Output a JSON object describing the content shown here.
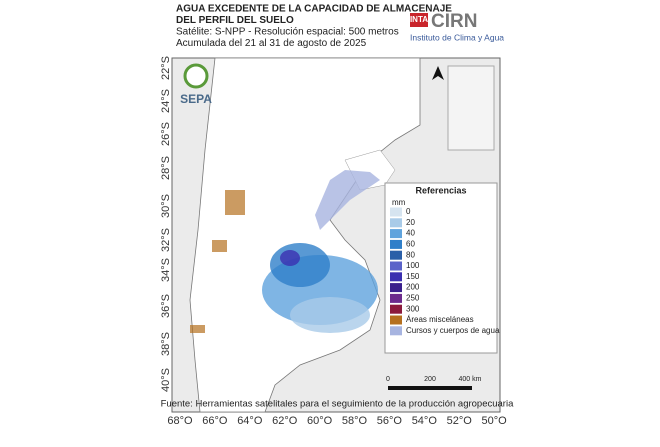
{
  "header": {
    "title_lines": [
      "AGUA EXCEDENTE DE LA CAPACIDAD DE ALMACENAJE",
      "DEL PERFIL DEL SUELO",
      "Satélite: S-NPP - Resolución espacial: 500 metros",
      "Acumulada del 21 al 31 de agosto de 2025"
    ]
  },
  "logo": {
    "org": "INTA",
    "name": "CIRN",
    "subtitle": "Instituto de Clima y Agua"
  },
  "sepa": "SEPA",
  "latitude_labels": [
    "22°S",
    "24°S",
    "26°S",
    "28°S",
    "30°S",
    "32°S",
    "34°S",
    "36°S",
    "38°S",
    "40°S"
  ],
  "longitude_labels": [
    "68°O",
    "66°O",
    "64°O",
    "62°O",
    "60°O",
    "58°O",
    "56°O",
    "54°O",
    "52°O",
    "50°O"
  ],
  "legend": {
    "title": "Referencias",
    "unit": "mm",
    "items": [
      {
        "label": "0",
        "color": "#d6e4f0"
      },
      {
        "label": "20",
        "color": "#a9cbe8"
      },
      {
        "label": "40",
        "color": "#5fa3dd"
      },
      {
        "label": "60",
        "color": "#2f7fc9"
      },
      {
        "label": "80",
        "color": "#2a5fa8"
      },
      {
        "label": "100",
        "color": "#5b63c9"
      },
      {
        "label": "150",
        "color": "#3b2fb0"
      },
      {
        "label": "200",
        "color": "#3a1f8c"
      },
      {
        "label": "250",
        "color": "#6b2a8c"
      },
      {
        "label": "300",
        "color": "#8b1a3c"
      },
      {
        "label": "Áreas misceláneas",
        "color": "#b5701f"
      },
      {
        "label": "Cursos y cuerpos de agua",
        "color": "#a7b4e0"
      }
    ]
  },
  "scale_bar": {
    "labels": [
      "0",
      "200",
      "400 km"
    ]
  },
  "footer": "Fuente: Herramientas satelitales para el seguimiento de la producción agropecuaria"
}
